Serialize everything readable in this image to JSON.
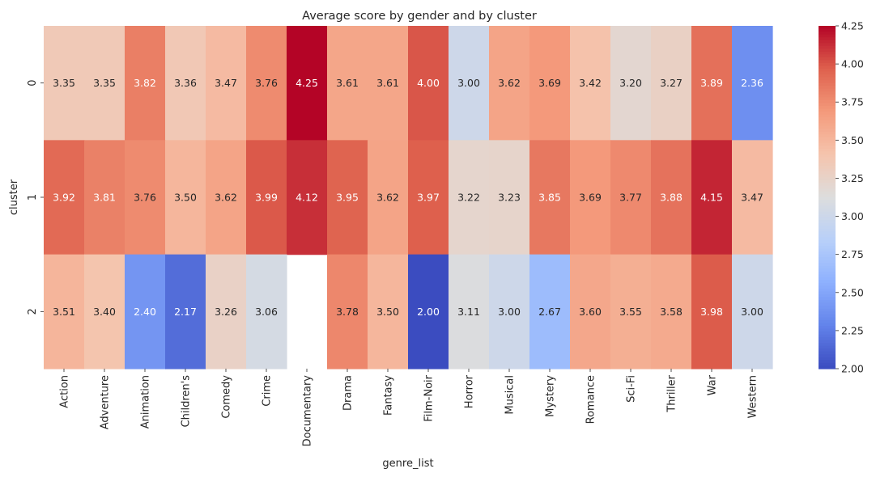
{
  "chart_data": {
    "type": "heatmap",
    "title": "Average score by gender and by cluster",
    "xlabel": "genre_list",
    "ylabel": "cluster",
    "x_categories": [
      "Action",
      "Adventure",
      "Animation",
      "Children's",
      "Comedy",
      "Crime",
      "Documentary",
      "Drama",
      "Fantasy",
      "Film-Noir",
      "Horror",
      "Musical",
      "Mystery",
      "Romance",
      "Sci-Fi",
      "Thriller",
      "War",
      "Western"
    ],
    "y_categories": [
      "0",
      "1",
      "2"
    ],
    "values": [
      [
        3.35,
        3.35,
        3.82,
        3.36,
        3.47,
        3.76,
        4.25,
        3.61,
        3.61,
        4.0,
        3.0,
        3.62,
        3.69,
        3.42,
        3.2,
        3.27,
        3.89,
        2.36
      ],
      [
        3.92,
        3.81,
        3.76,
        3.5,
        3.62,
        3.99,
        4.12,
        3.95,
        3.62,
        3.97,
        3.22,
        3.23,
        3.85,
        3.69,
        3.77,
        3.88,
        4.15,
        3.47
      ],
      [
        3.51,
        3.4,
        2.4,
        2.17,
        3.26,
        3.06,
        null,
        3.78,
        3.5,
        2.0,
        3.11,
        3.0,
        2.67,
        3.6,
        3.55,
        3.58,
        3.98,
        3.0
      ]
    ],
    "colormap": "coolwarm",
    "vmin": 2.0,
    "vmax": 4.25,
    "colorbar_ticks": [
      "2.00",
      "2.25",
      "2.50",
      "2.75",
      "3.00",
      "3.25",
      "3.50",
      "3.75",
      "4.00",
      "4.25"
    ]
  }
}
